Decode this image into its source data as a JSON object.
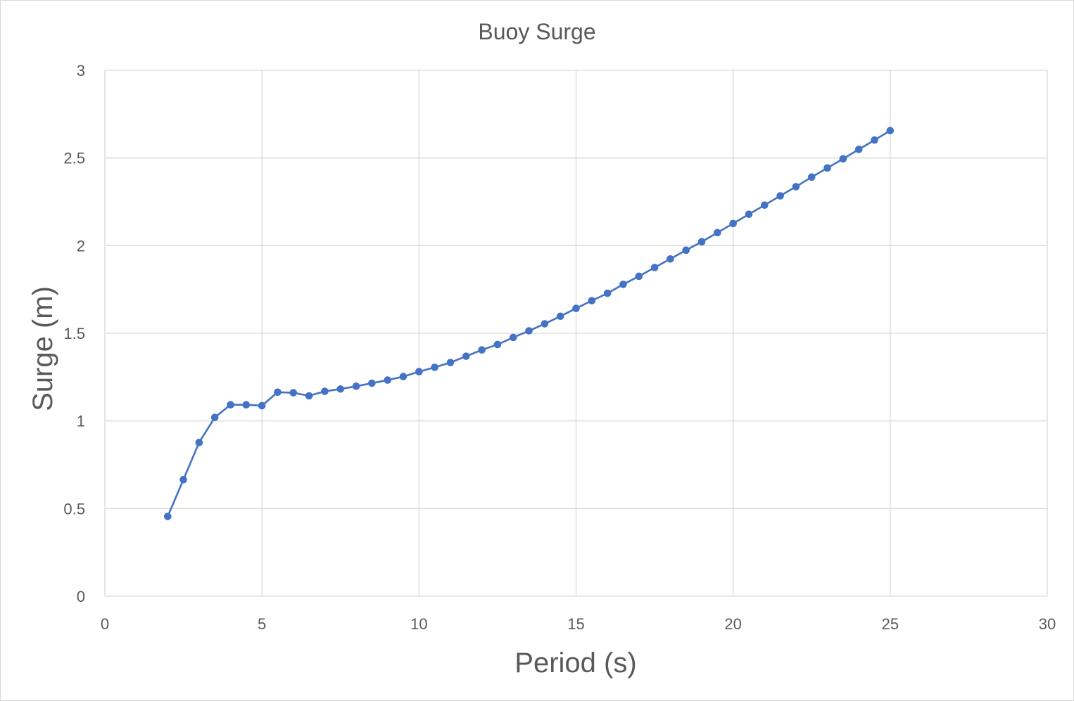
{
  "chart_data": {
    "type": "scatter",
    "title": "Buoy Surge",
    "xlabel": "Period (s)",
    "ylabel": "Surge (m)",
    "xlim": [
      0,
      30
    ],
    "ylim": [
      0,
      3
    ],
    "x_ticks": [
      "0",
      "5",
      "10",
      "15",
      "20",
      "25",
      "30"
    ],
    "y_ticks": [
      "0",
      "0.5",
      "1",
      "1.5",
      "2",
      "2.5",
      "3"
    ],
    "grid": true,
    "legend": "none",
    "series": [
      {
        "color": "#4472c4",
        "line": true,
        "markers": true,
        "x": [
          2,
          2.5,
          3,
          3.5,
          4,
          4.5,
          5,
          5.5,
          6,
          6.5,
          7,
          7.5,
          8,
          8.5,
          9,
          9.5,
          10,
          10.5,
          11,
          11.5,
          12,
          12.5,
          13,
          13.5,
          14,
          14.5,
          15,
          15.5,
          16,
          16.5,
          17,
          17.5,
          18,
          18.5,
          19,
          19.5,
          20,
          20.5,
          21,
          21.5,
          22,
          22.5,
          23,
          23.5,
          24,
          24.5,
          25
        ],
        "y": [
          0.455,
          0.665,
          0.877,
          1.02,
          1.092,
          1.092,
          1.087,
          1.164,
          1.161,
          1.143,
          1.169,
          1.182,
          1.198,
          1.215,
          1.233,
          1.253,
          1.281,
          1.306,
          1.333,
          1.369,
          1.405,
          1.436,
          1.476,
          1.514,
          1.554,
          1.597,
          1.642,
          1.686,
          1.728,
          1.779,
          1.825,
          1.875,
          1.924,
          1.974,
          2.022,
          2.074,
          2.126,
          2.179,
          2.231,
          2.284,
          2.336,
          2.391,
          2.443,
          2.495,
          2.549,
          2.602,
          2.656
        ]
      }
    ]
  }
}
